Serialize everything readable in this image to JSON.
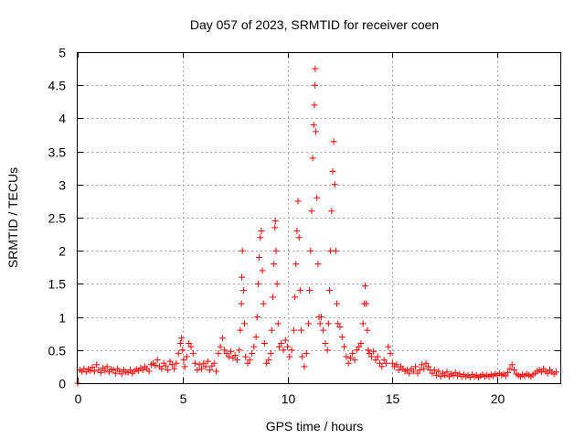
{
  "chart_data": {
    "type": "scatter",
    "title": "Day 057 of 2023, SRMTID for receiver coen",
    "xlabel": "GPS time / hours",
    "ylabel": "SRMTID / TECUs",
    "xlim": [
      0,
      23
    ],
    "ylim": [
      0,
      5
    ],
    "xticks": [
      0,
      5,
      10,
      15,
      20
    ],
    "yticks": [
      0,
      0.5,
      1,
      1.5,
      2,
      2.5,
      3,
      3.5,
      4,
      4.5,
      5
    ],
    "xtick_labels": [
      "0",
      "5",
      "10",
      "15",
      "20"
    ],
    "ytick_labels": [
      "0",
      "0.5",
      "1",
      "1.5",
      "2",
      "2.5",
      "3",
      "3.5",
      "4",
      "4.5",
      "5"
    ],
    "grid": true,
    "marker": "plus",
    "color": "#ff0000",
    "series": [
      {
        "name": "SRMTID",
        "points": [
          [
            0.0,
            0.0
          ],
          [
            0.1,
            0.2
          ],
          [
            0.2,
            0.18
          ],
          [
            0.3,
            0.22
          ],
          [
            0.4,
            0.17
          ],
          [
            0.5,
            0.21
          ],
          [
            0.6,
            0.19
          ],
          [
            0.7,
            0.24
          ],
          [
            0.8,
            0.18
          ],
          [
            0.9,
            0.28
          ],
          [
            1.0,
            0.2
          ],
          [
            1.1,
            0.16
          ],
          [
            1.2,
            0.23
          ],
          [
            1.3,
            0.19
          ],
          [
            1.4,
            0.25
          ],
          [
            1.5,
            0.17
          ],
          [
            1.6,
            0.21
          ],
          [
            1.7,
            0.2
          ],
          [
            1.8,
            0.15
          ],
          [
            1.9,
            0.22
          ],
          [
            2.0,
            0.18
          ],
          [
            2.1,
            0.14
          ],
          [
            2.2,
            0.2
          ],
          [
            2.3,
            0.17
          ],
          [
            2.4,
            0.16
          ],
          [
            2.5,
            0.2
          ],
          [
            2.6,
            0.15
          ],
          [
            2.7,
            0.18
          ],
          [
            2.8,
            0.21
          ],
          [
            2.9,
            0.19
          ],
          [
            3.0,
            0.23
          ],
          [
            3.1,
            0.2
          ],
          [
            3.2,
            0.25
          ],
          [
            3.3,
            0.22
          ],
          [
            3.4,
            0.18
          ],
          [
            3.5,
            0.28
          ],
          [
            3.6,
            0.3
          ],
          [
            3.7,
            0.27
          ],
          [
            3.8,
            0.35
          ],
          [
            3.9,
            0.25
          ],
          [
            4.0,
            0.22
          ],
          [
            4.1,
            0.3
          ],
          [
            4.2,
            0.26
          ],
          [
            4.3,
            0.2
          ],
          [
            4.4,
            0.33
          ],
          [
            4.5,
            0.28
          ],
          [
            4.6,
            0.22
          ],
          [
            4.7,
            0.3
          ],
          [
            4.8,
            0.45
          ],
          [
            4.9,
            0.6
          ],
          [
            4.95,
            0.68
          ],
          [
            5.0,
            0.5
          ],
          [
            5.05,
            0.35
          ],
          [
            5.1,
            0.25
          ],
          [
            5.2,
            0.4
          ],
          [
            5.3,
            0.6
          ],
          [
            5.4,
            0.55
          ],
          [
            5.5,
            0.45
          ],
          [
            5.6,
            0.3
          ],
          [
            5.7,
            0.2
          ],
          [
            5.8,
            0.28
          ],
          [
            5.9,
            0.22
          ],
          [
            6.0,
            0.3
          ],
          [
            6.1,
            0.25
          ],
          [
            6.2,
            0.33
          ],
          [
            6.3,
            0.2
          ],
          [
            6.4,
            0.26
          ],
          [
            6.5,
            0.3
          ],
          [
            6.6,
            0.18
          ],
          [
            6.7,
            0.45
          ],
          [
            6.8,
            0.55
          ],
          [
            6.9,
            0.68
          ],
          [
            7.0,
            0.5
          ],
          [
            7.1,
            0.45
          ],
          [
            7.2,
            0.4
          ],
          [
            7.3,
            0.48
          ],
          [
            7.4,
            0.38
          ],
          [
            7.5,
            0.42
          ],
          [
            7.6,
            0.35
          ],
          [
            7.7,
            0.5
          ],
          [
            7.75,
            0.8
          ],
          [
            7.8,
            1.2
          ],
          [
            7.82,
            1.6
          ],
          [
            7.85,
            2.0
          ],
          [
            7.9,
            1.4
          ],
          [
            7.95,
            0.9
          ],
          [
            8.0,
            0.4
          ],
          [
            8.1,
            0.3
          ],
          [
            8.2,
            0.35
          ],
          [
            8.3,
            0.45
          ],
          [
            8.4,
            0.55
          ],
          [
            8.5,
            0.7
          ],
          [
            8.55,
            1.0
          ],
          [
            8.6,
            1.5
          ],
          [
            8.65,
            1.9
          ],
          [
            8.7,
            2.2
          ],
          [
            8.75,
            2.3
          ],
          [
            8.8,
            1.7
          ],
          [
            8.85,
            1.2
          ],
          [
            8.9,
            0.6
          ],
          [
            9.0,
            0.3
          ],
          [
            9.1,
            0.35
          ],
          [
            9.2,
            0.45
          ],
          [
            9.25,
            0.8
          ],
          [
            9.3,
            1.3
          ],
          [
            9.35,
            1.8
          ],
          [
            9.4,
            2.35
          ],
          [
            9.42,
            2.45
          ],
          [
            9.45,
            2.0
          ],
          [
            9.5,
            1.5
          ],
          [
            9.55,
            0.9
          ],
          [
            9.6,
            0.55
          ],
          [
            9.7,
            0.6
          ],
          [
            9.8,
            0.5
          ],
          [
            9.9,
            0.65
          ],
          [
            10.0,
            0.55
          ],
          [
            10.1,
            0.4
          ],
          [
            10.2,
            0.5
          ],
          [
            10.3,
            0.8
          ],
          [
            10.35,
            1.3
          ],
          [
            10.4,
            1.8
          ],
          [
            10.45,
            2.3
          ],
          [
            10.5,
            2.75
          ],
          [
            10.55,
            2.2
          ],
          [
            10.6,
            1.4
          ],
          [
            10.65,
            0.8
          ],
          [
            10.7,
            0.4
          ],
          [
            10.8,
            0.25
          ],
          [
            10.9,
            0.45
          ],
          [
            11.0,
            0.9
          ],
          [
            11.05,
            1.4
          ],
          [
            11.1,
            2.0
          ],
          [
            11.15,
            2.6
          ],
          [
            11.2,
            3.4
          ],
          [
            11.25,
            3.9
          ],
          [
            11.28,
            4.2
          ],
          [
            11.3,
            4.5
          ],
          [
            11.32,
            4.75
          ],
          [
            11.35,
            3.8
          ],
          [
            11.4,
            2.8
          ],
          [
            11.45,
            1.8
          ],
          [
            11.5,
            1.0
          ],
          [
            11.55,
            0.9
          ],
          [
            11.6,
            1.0
          ],
          [
            11.7,
            0.8
          ],
          [
            11.8,
            0.6
          ],
          [
            11.9,
            0.5
          ],
          [
            11.95,
            0.9
          ],
          [
            12.0,
            1.4
          ],
          [
            12.05,
            2.0
          ],
          [
            12.1,
            2.6
          ],
          [
            12.15,
            3.2
          ],
          [
            12.2,
            3.65
          ],
          [
            12.25,
            3.0
          ],
          [
            12.3,
            2.0
          ],
          [
            12.35,
            1.2
          ],
          [
            12.4,
            0.9
          ],
          [
            12.5,
            0.85
          ],
          [
            12.6,
            0.7
          ],
          [
            12.7,
            0.55
          ],
          [
            12.8,
            0.4
          ],
          [
            12.9,
            0.3
          ],
          [
            13.0,
            0.38
          ],
          [
            13.1,
            0.45
          ],
          [
            13.2,
            0.35
          ],
          [
            13.3,
            0.5
          ],
          [
            13.4,
            0.55
          ],
          [
            13.5,
            0.6
          ],
          [
            13.6,
            0.9
          ],
          [
            13.65,
            1.2
          ],
          [
            13.7,
            1.47
          ],
          [
            13.75,
            1.2
          ],
          [
            13.8,
            0.8
          ],
          [
            13.85,
            0.5
          ],
          [
            13.9,
            0.45
          ],
          [
            14.0,
            0.4
          ],
          [
            14.1,
            0.48
          ],
          [
            14.2,
            0.35
          ],
          [
            14.3,
            0.4
          ],
          [
            14.4,
            0.3
          ],
          [
            14.5,
            0.25
          ],
          [
            14.6,
            0.35
          ],
          [
            14.7,
            0.3
          ],
          [
            14.8,
            0.55
          ],
          [
            14.9,
            0.45
          ],
          [
            15.0,
            0.3
          ],
          [
            15.1,
            0.25
          ],
          [
            15.2,
            0.28
          ],
          [
            15.3,
            0.2
          ],
          [
            15.4,
            0.25
          ],
          [
            15.5,
            0.22
          ],
          [
            15.6,
            0.18
          ],
          [
            15.7,
            0.2
          ],
          [
            15.8,
            0.15
          ],
          [
            15.9,
            0.22
          ],
          [
            16.0,
            0.18
          ],
          [
            16.1,
            0.25
          ],
          [
            16.2,
            0.15
          ],
          [
            16.3,
            0.2
          ],
          [
            16.4,
            0.28
          ],
          [
            16.5,
            0.22
          ],
          [
            16.6,
            0.3
          ],
          [
            16.7,
            0.25
          ],
          [
            16.8,
            0.2
          ],
          [
            16.9,
            0.15
          ],
          [
            17.0,
            0.2
          ],
          [
            17.1,
            0.12
          ],
          [
            17.2,
            0.18
          ],
          [
            17.3,
            0.1
          ],
          [
            17.4,
            0.15
          ],
          [
            17.5,
            0.12
          ],
          [
            17.6,
            0.17
          ],
          [
            17.7,
            0.1
          ],
          [
            17.8,
            0.14
          ],
          [
            17.9,
            0.12
          ],
          [
            18.0,
            0.16
          ],
          [
            18.1,
            0.11
          ],
          [
            18.2,
            0.14
          ],
          [
            18.3,
            0.1
          ],
          [
            18.4,
            0.13
          ],
          [
            18.5,
            0.1
          ],
          [
            18.6,
            0.12
          ],
          [
            18.7,
            0.09
          ],
          [
            18.8,
            0.13
          ],
          [
            18.9,
            0.1
          ],
          [
            19.0,
            0.12
          ],
          [
            19.1,
            0.09
          ],
          [
            19.2,
            0.11
          ],
          [
            19.3,
            0.13
          ],
          [
            19.4,
            0.1
          ],
          [
            19.5,
            0.12
          ],
          [
            19.6,
            0.1
          ],
          [
            19.7,
            0.13
          ],
          [
            19.8,
            0.11
          ],
          [
            19.9,
            0.14
          ],
          [
            20.0,
            0.12
          ],
          [
            20.1,
            0.15
          ],
          [
            20.2,
            0.12
          ],
          [
            20.3,
            0.14
          ],
          [
            20.4,
            0.11
          ],
          [
            20.5,
            0.16
          ],
          [
            20.6,
            0.22
          ],
          [
            20.7,
            0.28
          ],
          [
            20.8,
            0.2
          ],
          [
            20.9,
            0.14
          ],
          [
            21.0,
            0.12
          ],
          [
            21.1,
            0.1
          ],
          [
            21.2,
            0.13
          ],
          [
            21.3,
            0.11
          ],
          [
            21.4,
            0.14
          ],
          [
            21.5,
            0.12
          ],
          [
            21.6,
            0.1
          ],
          [
            21.7,
            0.13
          ],
          [
            21.8,
            0.15
          ],
          [
            21.9,
            0.18
          ],
          [
            22.0,
            0.2
          ],
          [
            22.1,
            0.17
          ],
          [
            22.2,
            0.22
          ],
          [
            22.3,
            0.18
          ],
          [
            22.4,
            0.15
          ],
          [
            22.5,
            0.2
          ],
          [
            22.6,
            0.17
          ],
          [
            22.7,
            0.14
          ],
          [
            22.8,
            0.17
          ]
        ]
      }
    ]
  }
}
